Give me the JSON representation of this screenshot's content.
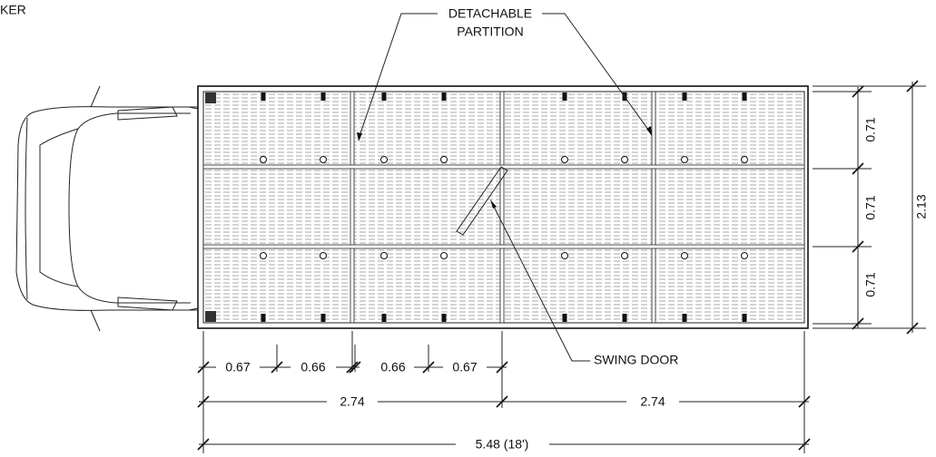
{
  "corner_label": "KER",
  "callouts": {
    "partition": [
      "DETACHABLE",
      "PARTITION"
    ],
    "door": "SWING DOOR"
  },
  "dimensions": {
    "right": [
      "0.71",
      "0.71",
      "0.71"
    ],
    "overall_width": "2.13",
    "bottom_segments": [
      "0.67",
      "0.66",
      "0.66",
      "0.67"
    ],
    "halves": [
      "2.74",
      "2.74"
    ],
    "overall_length": "5.48 (18')"
  }
}
